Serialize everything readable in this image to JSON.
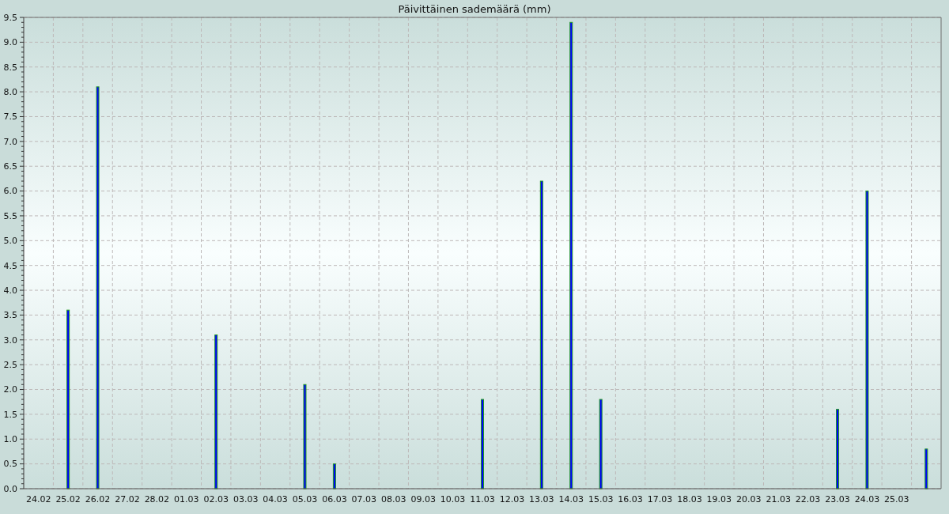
{
  "chart_data": {
    "type": "bar",
    "title": "Päivittäinen sademäärä (mm)",
    "categories": [
      "24.02",
      "25.02",
      "26.02",
      "27.02",
      "28.02",
      "01.03",
      "02.03",
      "03.03",
      "04.03",
      "05.03",
      "06.03",
      "07.03",
      "08.03",
      "09.03",
      "10.03",
      "11.03",
      "12.03",
      "13.03",
      "14.03",
      "15.03",
      "16.03",
      "17.03",
      "18.03",
      "19.03",
      "20.03",
      "21.03",
      "22.03",
      "23.03",
      "24.03",
      "25.03",
      null
    ],
    "values": [
      0,
      3.6,
      8.1,
      0,
      0,
      0,
      3.1,
      0,
      0,
      2.1,
      0.5,
      0,
      0,
      0,
      0,
      1.8,
      0,
      6.2,
      9.4,
      1.8,
      0,
      0,
      0,
      0,
      0,
      0,
      0,
      1.6,
      6.0,
      0,
      0.8
    ],
    "color": "#0000ff",
    "ylim": [
      0,
      9.5
    ],
    "yticks": [
      {
        "value": 0,
        "label": "0.0"
      },
      {
        "value": 0.1,
        "label": null
      },
      {
        "value": 0.2,
        "label": null
      },
      {
        "value": 0.3,
        "label": null
      },
      {
        "value": 0.4,
        "label": null
      },
      0.5,
      {
        "value": 0.6,
        "label": null
      },
      {
        "value": 0.7,
        "label": null
      },
      {
        "value": 0.8,
        "label": null
      },
      {
        "value": 0.9,
        "label": null
      },
      {
        "value": 1,
        "label": "1.0"
      },
      {
        "value": 1.1,
        "label": null
      },
      {
        "value": 1.2,
        "label": null
      },
      {
        "value": 1.3,
        "label": null
      },
      {
        "value": 1.4,
        "label": null
      },
      1.5,
      {
        "value": 1.6,
        "label": null
      },
      {
        "value": 1.7,
        "label": null
      },
      {
        "value": 1.8,
        "label": null
      },
      {
        "value": 1.9,
        "label": null
      },
      {
        "value": 2,
        "label": "2.0"
      },
      {
        "value": 2.1,
        "label": null
      },
      {
        "value": 2.2,
        "label": null
      },
      {
        "value": 2.3,
        "label": null
      },
      {
        "value": 2.4,
        "label": null
      },
      2.5,
      {
        "value": 2.6,
        "label": null
      },
      {
        "value": 2.7,
        "label": null
      },
      {
        "value": 2.8,
        "label": null
      },
      {
        "value": 2.9,
        "label": null
      },
      {
        "value": 3,
        "label": "3.0"
      },
      {
        "value": 3.1,
        "label": null
      },
      {
        "value": 3.2,
        "label": null
      },
      {
        "value": 3.3,
        "label": null
      },
      {
        "value": 3.4,
        "label": null
      },
      3.5,
      {
        "value": 3.6,
        "label": null
      },
      {
        "value": 3.7,
        "label": null
      },
      {
        "value": 3.8,
        "label": null
      },
      {
        "value": 3.9,
        "label": null
      },
      {
        "value": 4,
        "label": "4.0"
      },
      {
        "value": 4.1,
        "label": null
      },
      {
        "value": 4.2,
        "label": null
      },
      {
        "value": 4.3,
        "label": null
      },
      {
        "value": 4.4,
        "label": null
      },
      4.5,
      {
        "value": 4.6,
        "label": null
      },
      {
        "value": 4.7,
        "label": null
      },
      {
        "value": 4.8,
        "label": null
      },
      {
        "value": 4.9,
        "label": null
      },
      {
        "value": 5,
        "label": "5.0"
      },
      {
        "value": 5.1,
        "label": null
      },
      {
        "value": 5.2,
        "label": null
      },
      {
        "value": 5.3,
        "label": null
      },
      {
        "value": 5.4,
        "label": null
      },
      5.5,
      {
        "value": 5.6,
        "label": null
      },
      {
        "value": 5.7,
        "label": null
      },
      {
        "value": 5.8,
        "label": null
      },
      {
        "value": 5.9,
        "label": null
      },
      {
        "value": 6,
        "label": "6.0"
      },
      {
        "value": 6.1,
        "label": null
      },
      {
        "value": 6.2,
        "label": null
      },
      {
        "value": 6.3,
        "label": null
      },
      {
        "value": 6.4,
        "label": null
      },
      6.5,
      {
        "value": 6.6,
        "label": null
      },
      {
        "value": 6.7,
        "label": null
      },
      {
        "value": 6.8,
        "label": null
      },
      {
        "value": 6.9,
        "label": null
      },
      {
        "value": 7,
        "label": "7.0"
      },
      {
        "value": 7.1,
        "label": null
      },
      {
        "value": 7.2,
        "label": null
      },
      {
        "value": 7.3,
        "label": null
      },
      {
        "value": 7.4,
        "label": null
      },
      7.5,
      {
        "value": 7.6,
        "label": null
      },
      {
        "value": 7.7,
        "label": null
      },
      {
        "value": 7.8,
        "label": null
      },
      {
        "value": 7.9,
        "label": null
      },
      {
        "value": 8,
        "label": "8.0"
      },
      {
        "value": 8.1,
        "label": null
      },
      {
        "value": 8.2,
        "label": null
      },
      {
        "value": 8.3,
        "label": null
      },
      {
        "value": 8.4,
        "label": null
      },
      8.5,
      {
        "value": 8.6,
        "label": null
      },
      {
        "value": 8.7,
        "label": null
      },
      {
        "value": 8.8,
        "label": null
      },
      {
        "value": 8.9,
        "label": null
      },
      {
        "value": 9,
        "label": "9.0"
      },
      {
        "value": 9.1,
        "label": null
      },
      {
        "value": 9.2,
        "label": null
      },
      {
        "value": 9.3,
        "label": null
      },
      {
        "value": 9.4,
        "label": null
      },
      9.5
    ],
    "grid": true
  }
}
